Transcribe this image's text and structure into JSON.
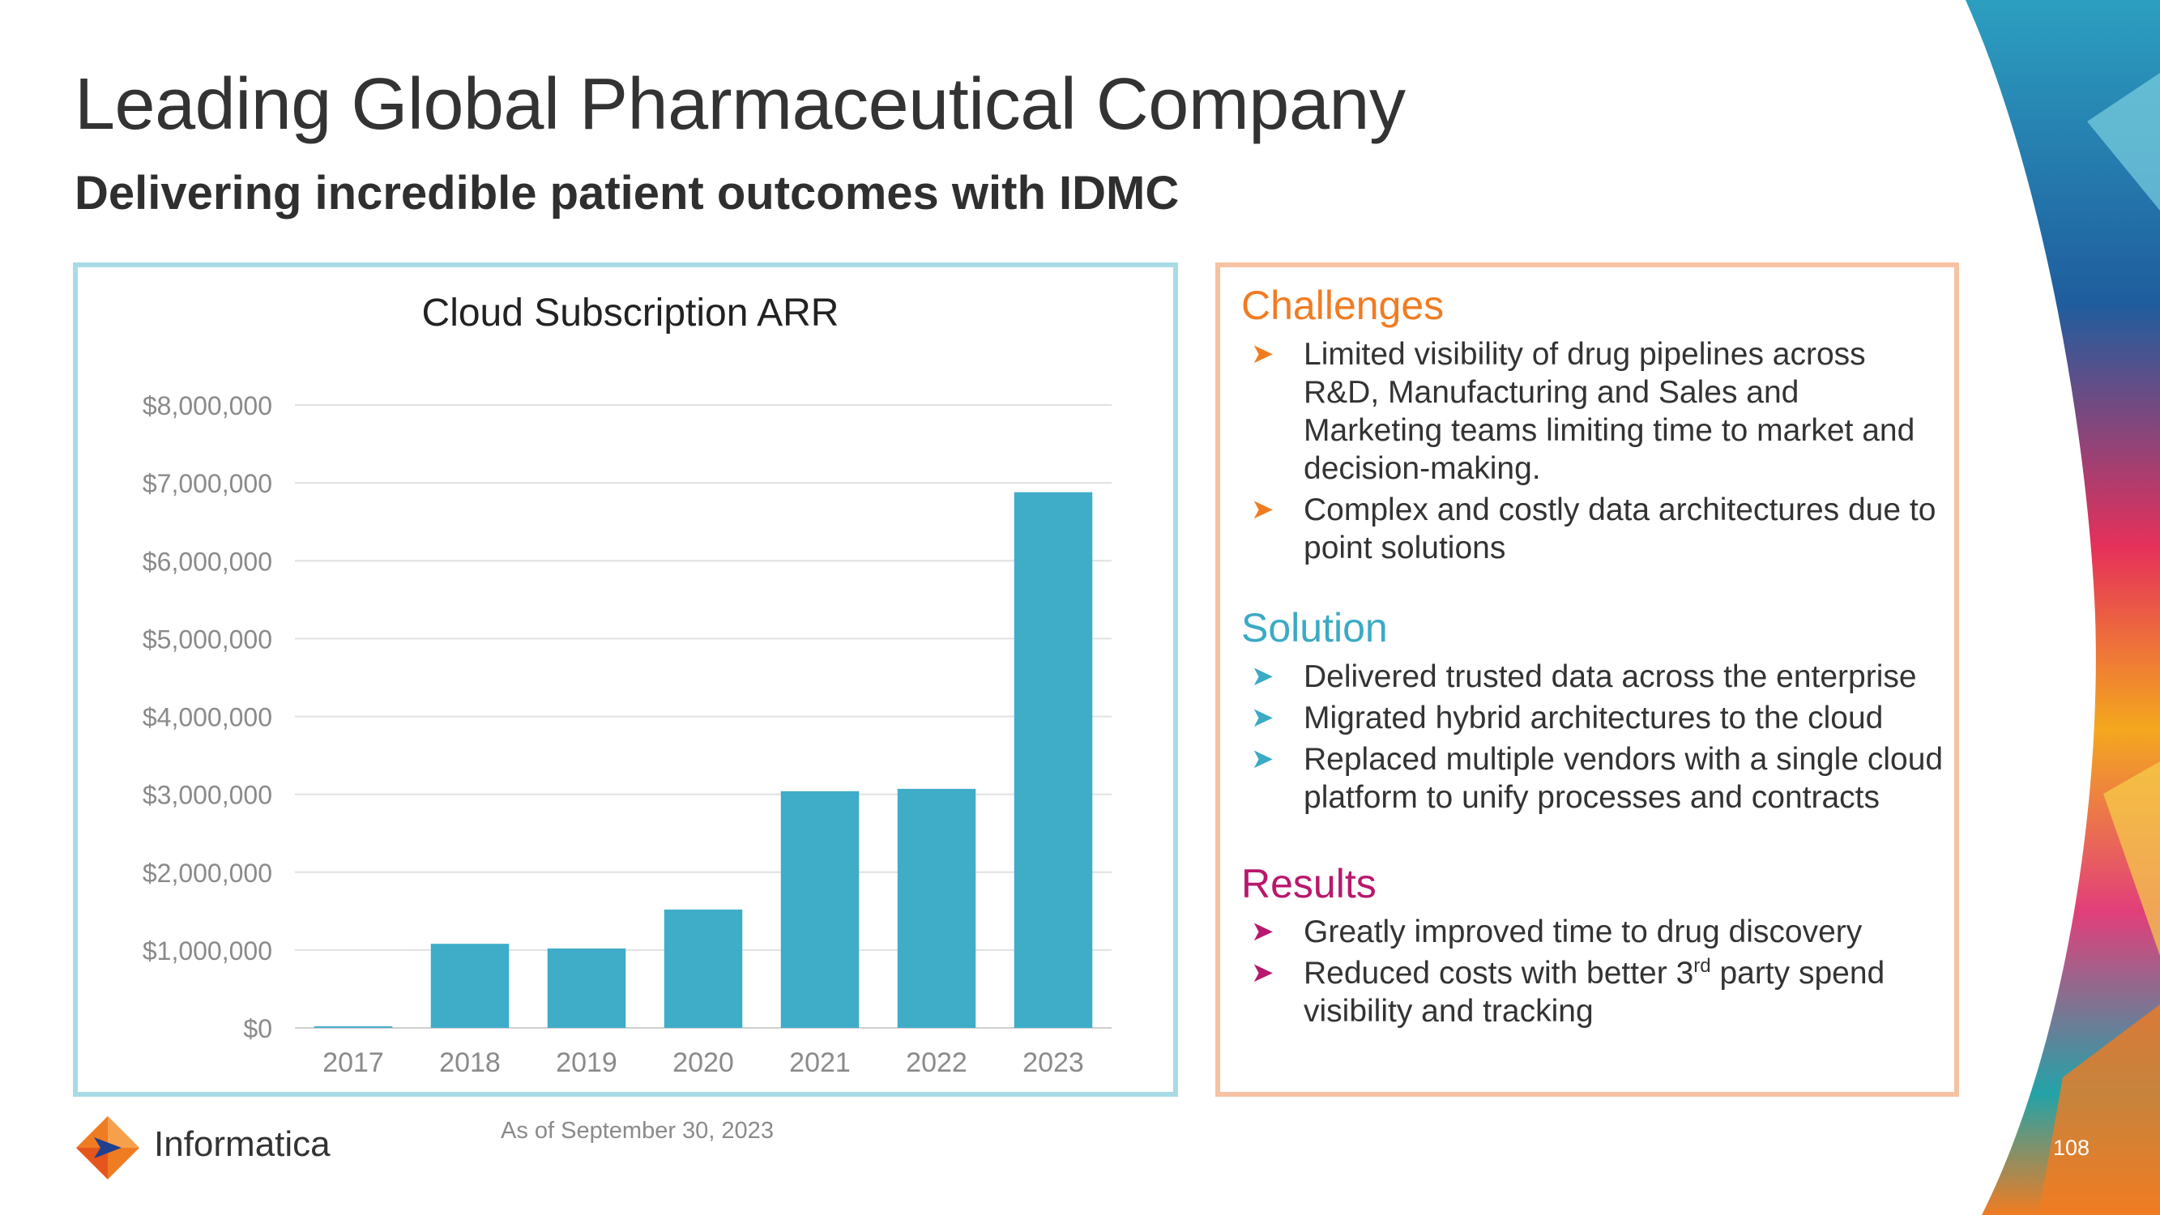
{
  "slide": {
    "title": "Leading Global Pharmaceutical Company",
    "subtitle": "Delivering incredible patient outcomes with IDMC",
    "footnote": "As of September 30, 2023",
    "logo_text": "Informatica",
    "page_number": "108"
  },
  "colors": {
    "bar": "#3facc8",
    "challenges": "#f07c22",
    "solution": "#3aaac5",
    "results": "#b8186d"
  },
  "chart_data": {
    "type": "bar",
    "title": "Cloud Subscription ARR",
    "categories": [
      "2017",
      "2018",
      "2019",
      "2020",
      "2021",
      "2022",
      "2023"
    ],
    "values": [
      20000,
      1080000,
      1020000,
      1520000,
      3040000,
      3070000,
      6880000
    ],
    "ylim": [
      0,
      8000000
    ],
    "yticks": [
      0,
      1000000,
      2000000,
      3000000,
      4000000,
      5000000,
      6000000,
      7000000,
      8000000
    ],
    "ytick_labels": [
      "$0",
      "$1,000,000",
      "$2,000,000",
      "$3,000,000",
      "$4,000,000",
      "$5,000,000",
      "$6,000,000",
      "$7,000,000",
      "$8,000,000"
    ],
    "xlabel": "",
    "ylabel": "",
    "grid": true,
    "legend": "none"
  },
  "challenges": {
    "heading": "Challenges",
    "items": [
      "Limited visibility of drug pipelines across R&D, Manufacturing and Sales and Marketing teams limiting time to market and decision-making.",
      "Complex and costly data architectures due to point solutions"
    ]
  },
  "solution": {
    "heading": "Solution",
    "items": [
      "Delivered trusted data across the enterprise",
      "Migrated hybrid architectures to the cloud",
      "Replaced multiple vendors with a single cloud platform to unify processes and contracts"
    ]
  },
  "results": {
    "heading": "Results",
    "item1": "Greatly improved time to drug discovery",
    "item2_pre": "Reduced costs with better 3",
    "item2_sup": "rd",
    "item2_post": " party spend visibility and tracking"
  }
}
